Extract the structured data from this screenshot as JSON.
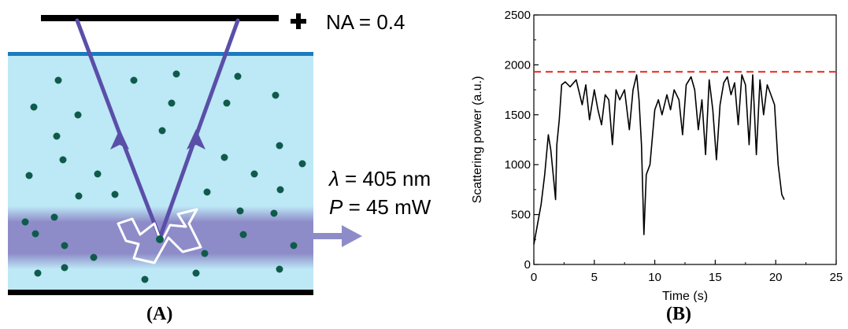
{
  "panel_a": {
    "na_text": "NA = 0.4",
    "lambda_symbol": "λ",
    "lambda_text": " = 405 nm",
    "power_symbol": "P",
    "power_text": " = 45 mW",
    "caption": "(A)"
  },
  "panel_b": {
    "caption": "(B)"
  },
  "chart_data": {
    "type": "line",
    "xlabel": "Time (s)",
    "ylabel": "Scattering power (a.u.)",
    "xlim": [
      0,
      25
    ],
    "ylim": [
      0,
      2500
    ],
    "xticks": [
      0,
      5,
      10,
      15,
      20,
      25
    ],
    "yticks": [
      0,
      500,
      1000,
      1500,
      2000,
      2500
    ],
    "grid": false,
    "threshold_line": {
      "y": 1930,
      "style": "dashed",
      "color": "#e8241c"
    },
    "series": [
      {
        "color": "#000000",
        "x": [
          0,
          0.3,
          0.6,
          0.9,
          1.2,
          1.4,
          1.6,
          1.8,
          1.9,
          2.1,
          2.3,
          2.6,
          3.0,
          3.5,
          4.0,
          4.3,
          4.6,
          5.0,
          5.3,
          5.6,
          5.9,
          6.2,
          6.5,
          6.8,
          7.1,
          7.5,
          7.9,
          8.2,
          8.5,
          8.7,
          8.9,
          9.1,
          9.3,
          9.6,
          10.0,
          10.3,
          10.6,
          11.0,
          11.3,
          11.6,
          12.0,
          12.3,
          12.6,
          13.0,
          13.3,
          13.6,
          13.9,
          14.2,
          14.5,
          14.8,
          15.1,
          15.4,
          15.7,
          16.0,
          16.3,
          16.6,
          16.9,
          17.2,
          17.5,
          17.8,
          18.1,
          18.4,
          18.7,
          19.0,
          19.3,
          19.6,
          19.9,
          20.2,
          20.5,
          20.7
        ],
        "y": [
          200,
          400,
          600,
          900,
          1300,
          1150,
          900,
          650,
          1200,
          1450,
          1800,
          1830,
          1780,
          1850,
          1600,
          1800,
          1450,
          1750,
          1550,
          1400,
          1700,
          1650,
          1200,
          1750,
          1650,
          1750,
          1350,
          1750,
          1900,
          1650,
          1200,
          300,
          900,
          1000,
          1550,
          1650,
          1500,
          1700,
          1550,
          1750,
          1650,
          1300,
          1800,
          1880,
          1750,
          1350,
          1650,
          1100,
          1850,
          1550,
          1050,
          1600,
          1820,
          1880,
          1700,
          1820,
          1400,
          1900,
          1800,
          1200,
          1900,
          1100,
          1850,
          1500,
          1800,
          1700,
          1600,
          1000,
          700,
          650
        ]
      }
    ]
  }
}
